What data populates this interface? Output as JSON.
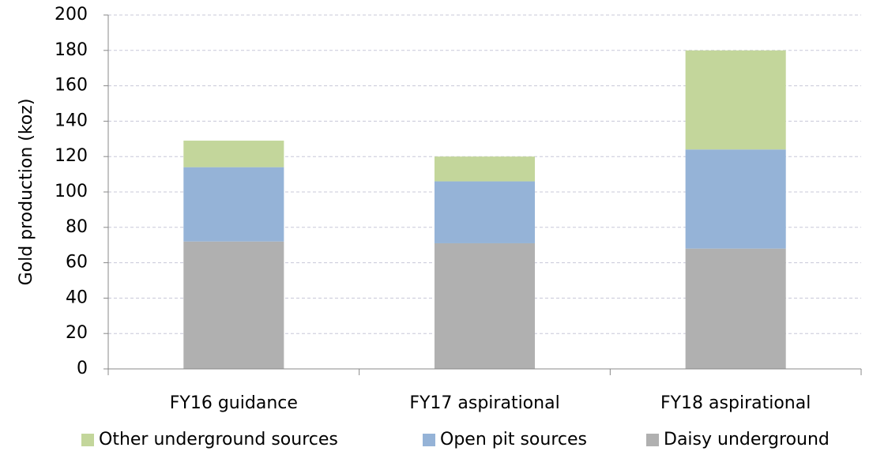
{
  "chart_data": {
    "type": "stacked_bar",
    "y_label": "Gold production (koz)",
    "categories": [
      "FY16 guidance",
      "FY17 aspirational",
      "FY18 aspirational"
    ],
    "series": [
      {
        "name": "Daisy underground",
        "color": "#b0b0b0",
        "values": [
          72,
          71,
          68
        ]
      },
      {
        "name": "Open pit sources",
        "color": "#95b3d7",
        "values": [
          42,
          35,
          56
        ]
      },
      {
        "name": "Other underground sources",
        "color": "#c3d69b",
        "values": [
          15,
          14,
          56
        ]
      }
    ],
    "ylim": [
      0,
      200
    ],
    "yticks": [
      0,
      20,
      40,
      60,
      80,
      100,
      120,
      140,
      160,
      180,
      200
    ],
    "grid": true
  }
}
